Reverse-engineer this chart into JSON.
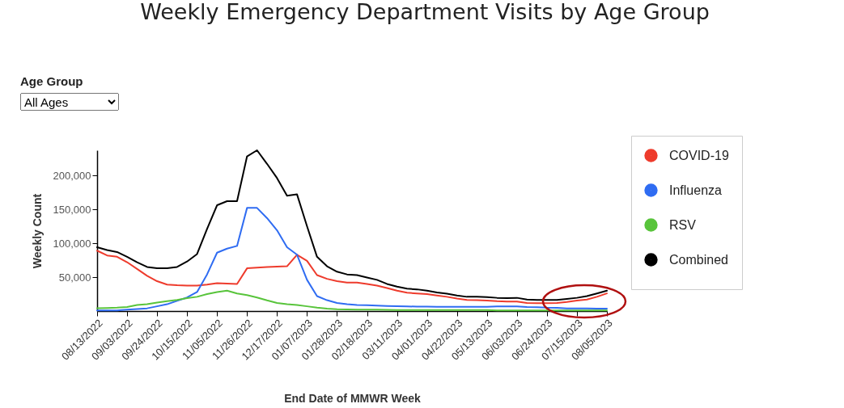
{
  "chart_data": {
    "type": "line",
    "title": "Weekly Emergency Department Visits by Age Group",
    "xlabel": "End Date of MMWR Week",
    "ylabel": "Weekly Count",
    "annotations": [
      "Age Group",
      "All Ages"
    ],
    "x": [
      "2022-08-13",
      "2022-08-20",
      "2022-08-27",
      "2022-09-03",
      "2022-09-10",
      "2022-09-17",
      "2022-09-24",
      "2022-10-01",
      "2022-10-08",
      "2022-10-15",
      "2022-10-22",
      "2022-10-29",
      "2022-11-05",
      "2022-11-12",
      "2022-11-19",
      "2022-11-26",
      "2022-12-03",
      "2022-12-10",
      "2022-12-17",
      "2022-12-24",
      "2022-12-31",
      "2023-01-07",
      "2023-01-14",
      "2023-01-21",
      "2023-01-28",
      "2023-02-04",
      "2023-02-11",
      "2023-02-18",
      "2023-02-25",
      "2023-03-04",
      "2023-03-11",
      "2023-03-18",
      "2023-03-25",
      "2023-04-01",
      "2023-04-08",
      "2023-04-15",
      "2023-04-22",
      "2023-04-29",
      "2023-05-06",
      "2023-05-13",
      "2023-05-20",
      "2023-05-27",
      "2023-06-03",
      "2023-06-10",
      "2023-06-17",
      "2023-06-24",
      "2023-07-01",
      "2023-07-08",
      "2023-07-15",
      "2023-07-22",
      "2023-07-29",
      "2023-08-05"
    ],
    "xlim": [
      "2022-08-13",
      "2023-08-05"
    ],
    "xticks": [
      {
        "value": "2022-08-13",
        "label": "08/13/2022"
      },
      {
        "value": "2022-09-03",
        "label": "09/03/2022"
      },
      {
        "value": "2022-09-24",
        "label": "09/24/2022"
      },
      {
        "value": "2022-10-15",
        "label": "10/15/2022"
      },
      {
        "value": "2022-11-05",
        "label": "11/05/2022"
      },
      {
        "value": "2022-11-26",
        "label": "11/26/2022"
      },
      {
        "value": "2022-12-17",
        "label": "12/17/2022"
      },
      {
        "value": "2023-01-07",
        "label": "01/07/2023"
      },
      {
        "value": "2023-01-28",
        "label": "01/28/2023"
      },
      {
        "value": "2023-02-18",
        "label": "02/18/2023"
      },
      {
        "value": "2023-03-11",
        "label": "03/11/2023"
      },
      {
        "value": "2023-04-01",
        "label": "04/01/2023"
      },
      {
        "value": "2023-04-22",
        "label": "04/22/2023"
      },
      {
        "value": "2023-05-13",
        "label": "05/13/2023"
      },
      {
        "value": "2023-06-03",
        "label": "06/03/2023"
      },
      {
        "value": "2023-06-24",
        "label": "06/24/2023"
      },
      {
        "value": "2023-07-15",
        "label": "07/15/2023"
      },
      {
        "value": "2023-08-05",
        "label": "08/05/2023"
      }
    ],
    "ylim": [
      0,
      237000
    ],
    "yticks": [
      {
        "value": 50000,
        "label": "50,000"
      },
      {
        "value": 100000,
        "label": "100,000"
      },
      {
        "value": 150000,
        "label": "150,000"
      },
      {
        "value": 200000,
        "label": "200,000"
      }
    ],
    "legend": "right",
    "marker": "none",
    "line_style": "solid",
    "series": [
      {
        "name": "COVID-19",
        "color": "#ee3b2c",
        "values": [
          89000,
          82000,
          80000,
          72000,
          62000,
          52000,
          44000,
          39000,
          38000,
          37500,
          37500,
          39000,
          41000,
          40500,
          40000,
          63000,
          64000,
          65000,
          65500,
          66000,
          83000,
          74000,
          53000,
          47500,
          44000,
          42000,
          42000,
          40000,
          37500,
          34000,
          30000,
          27000,
          26000,
          25000,
          23000,
          21000,
          18500,
          16500,
          16000,
          15500,
          14500,
          14000,
          14000,
          12000,
          11500,
          11500,
          12000,
          13500,
          15500,
          17000,
          21000,
          26000
        ]
      },
      {
        "name": "Influenza",
        "color": "#2f6cf2",
        "values": [
          1000,
          1000,
          1000,
          2000,
          3000,
          4000,
          7000,
          10000,
          15000,
          20000,
          28000,
          54000,
          86000,
          92000,
          96000,
          152000,
          152000,
          137000,
          119000,
          94000,
          83000,
          46000,
          22000,
          16000,
          12000,
          10000,
          9000,
          8600,
          8000,
          7500,
          7000,
          6800,
          6600,
          6500,
          6400,
          6300,
          6200,
          6200,
          6300,
          6400,
          6700,
          6800,
          6800,
          6000,
          5600,
          5000,
          4800,
          4000,
          4000,
          3800,
          3500,
          3500
        ]
      },
      {
        "name": "RSV",
        "color": "#58c43b",
        "values": [
          4300,
          4500,
          5000,
          6000,
          9000,
          10000,
          12600,
          14500,
          16500,
          19000,
          21000,
          25000,
          28000,
          30000,
          26000,
          23600,
          20000,
          15700,
          12000,
          10000,
          9000,
          7000,
          5000,
          3500,
          2700,
          2300,
          2000,
          2000,
          2000,
          1800,
          1500,
          1500,
          1500,
          1500,
          1500,
          1500,
          1500,
          1500,
          1500,
          1500,
          1000,
          1000,
          1000,
          1000,
          1000,
          1000,
          1000,
          1000,
          1000,
          1000,
          1000,
          1000
        ]
      },
      {
        "name": "Combined",
        "color": "#000000",
        "values": [
          94000,
          90000,
          87000,
          80000,
          72000,
          65000,
          63000,
          63000,
          65000,
          73000,
          84000,
          121000,
          156000,
          162000,
          162000,
          228000,
          237000,
          217000,
          196000,
          170000,
          172000,
          125000,
          80000,
          66000,
          58000,
          54000,
          53000,
          49500,
          46000,
          40000,
          36000,
          33000,
          32000,
          30000,
          27500,
          25500,
          23000,
          21000,
          21000,
          20500,
          19500,
          19000,
          19500,
          17000,
          16500,
          16500,
          16500,
          18000,
          19500,
          22000,
          26000,
          30000
        ]
      }
    ]
  }
}
